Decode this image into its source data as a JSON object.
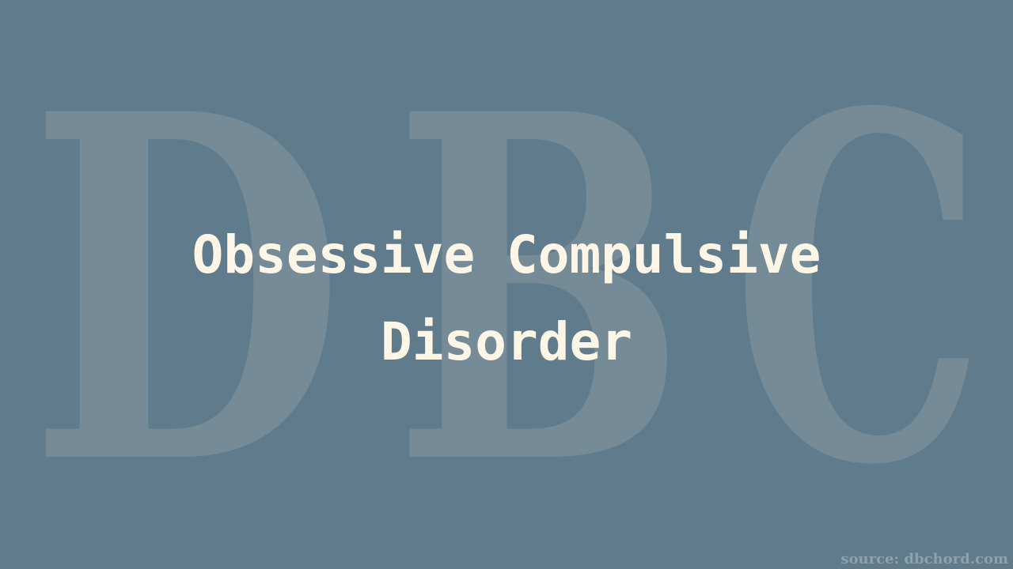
{
  "watermark": {
    "letters": [
      "D",
      "B",
      "C"
    ]
  },
  "title": {
    "line1": "Obsessive Compulsive",
    "line2": "Disorder"
  },
  "source": "source: dbchord.com",
  "colors": {
    "background": "#5f7b8c",
    "watermark": "#758b98",
    "title": "#fdf6e6",
    "source": "#8ea2ae"
  }
}
